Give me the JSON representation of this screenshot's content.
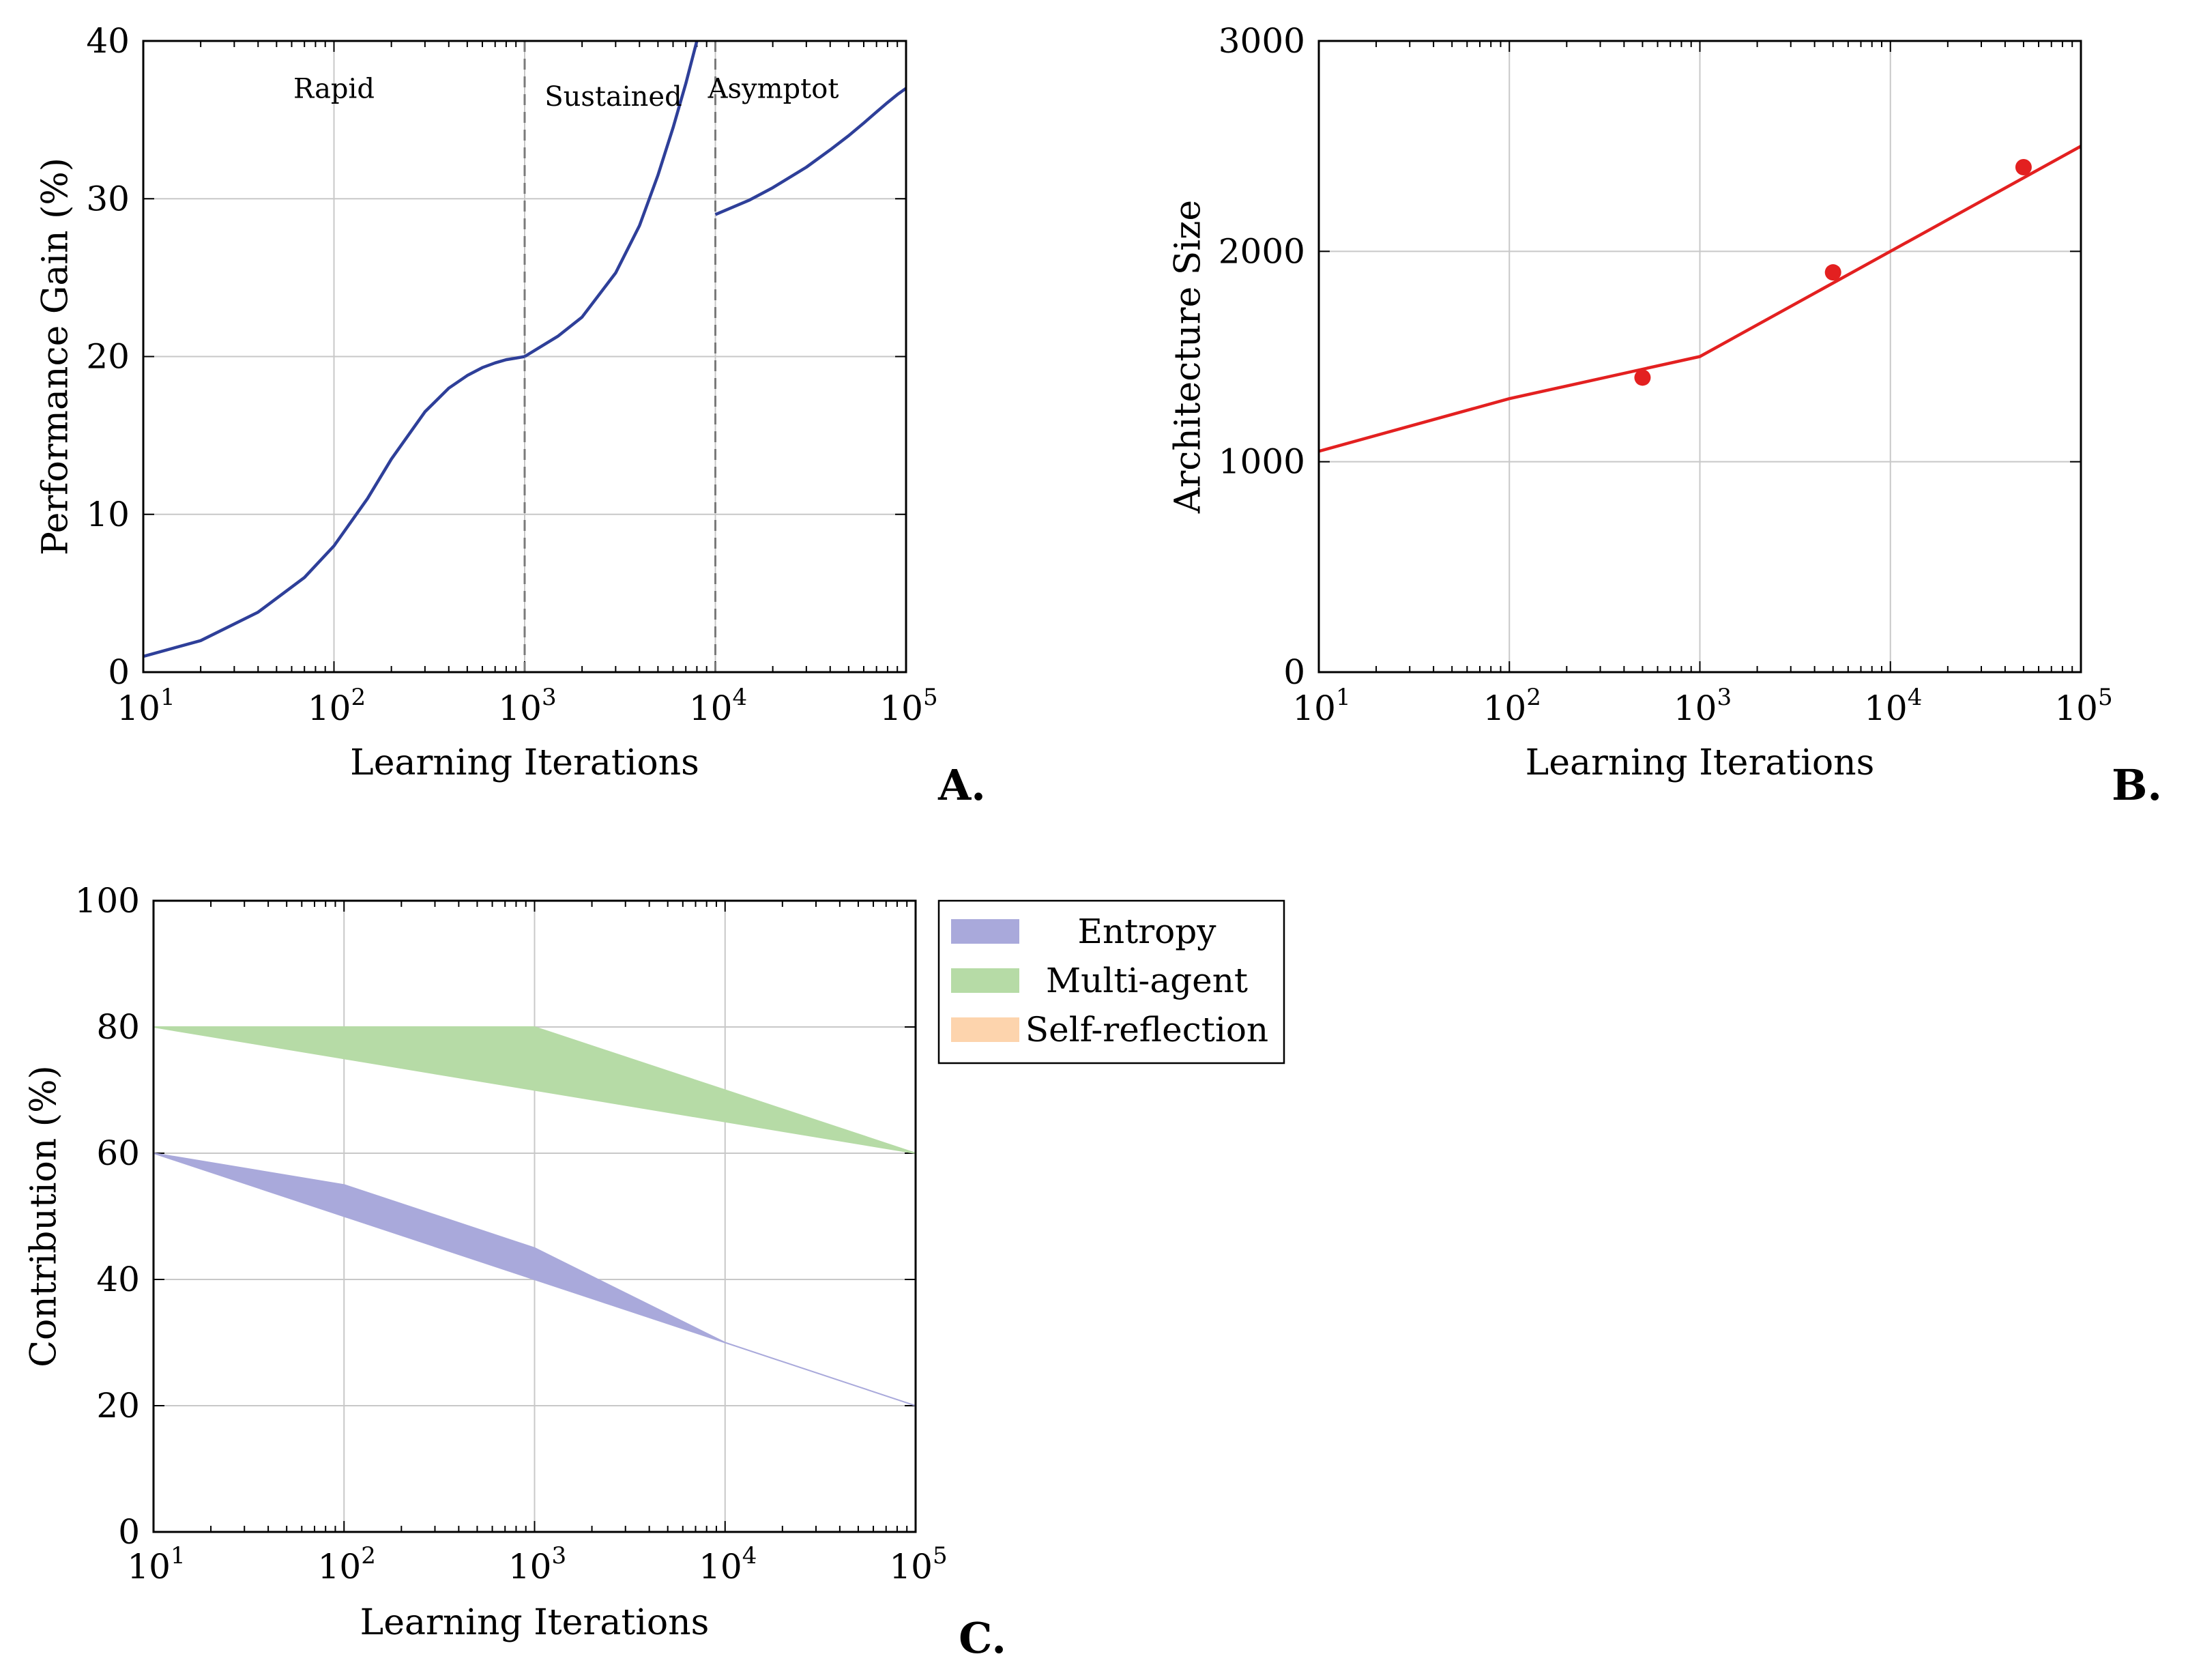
{
  "chart_data": [
    {
      "type": "line",
      "panel_label": "A.",
      "xlabel": "Learning Iterations",
      "ylabel": "Performance Gain (%)",
      "xscale": "log",
      "xlim": [
        10,
        100000
      ],
      "ylim": [
        0,
        40
      ],
      "x_ticks": [
        {
          "base": "10",
          "exp": "1"
        },
        {
          "base": "10",
          "exp": "2"
        },
        {
          "base": "10",
          "exp": "3"
        },
        {
          "base": "10",
          "exp": "4"
        },
        {
          "base": "10",
          "exp": "5"
        }
      ],
      "y_ticks": [
        "0",
        "10",
        "20",
        "30",
        "40"
      ],
      "grid": true,
      "phase_boundaries": [
        1000,
        10000
      ],
      "annotations": [
        {
          "text": "Rapid",
          "x": 100,
          "y": 37
        },
        {
          "text": "Sustained",
          "x": 1000,
          "y": 36.5
        },
        {
          "text": "Asymptot",
          "x": 10000,
          "y": 37
        }
      ],
      "series": [
        {
          "color": "#2e3f99",
          "segments": [
            {
              "x": [
                10,
                20,
                40,
                70,
                100,
                150,
                200,
                300,
                400,
                500,
                600,
                700,
                800,
                900,
                1000
              ],
              "y": [
                1,
                2,
                3.8,
                6,
                8,
                11,
                13.5,
                16.5,
                18,
                18.8,
                19.3,
                19.6,
                19.8,
                19.9,
                20
              ]
            },
            {
              "x": [
                1000,
                1500,
                2000,
                3000,
                4000,
                5000,
                6000,
                7000,
                8000
              ],
              "y": [
                20,
                21.3,
                22.5,
                25.3,
                28.3,
                31.5,
                34.5,
                37.3,
                40
              ]
            },
            {
              "x": [
                10000,
                15000,
                20000,
                30000,
                40000,
                50000,
                60000,
                70000,
                80000,
                90000,
                100000
              ],
              "y": [
                29,
                29.9,
                30.7,
                32,
                33.1,
                34,
                34.8,
                35.5,
                36.1,
                36.6,
                37
              ]
            }
          ]
        }
      ]
    },
    {
      "type": "line",
      "panel_label": "B.",
      "xlabel": "Learning Iterations",
      "ylabel": "Architecture Size",
      "xscale": "log",
      "xlim": [
        10,
        100000
      ],
      "ylim": [
        0,
        3000
      ],
      "x_ticks": [
        {
          "base": "10",
          "exp": "1"
        },
        {
          "base": "10",
          "exp": "2"
        },
        {
          "base": "10",
          "exp": "3"
        },
        {
          "base": "10",
          "exp": "4"
        },
        {
          "base": "10",
          "exp": "5"
        }
      ],
      "y_ticks": [
        "0",
        "1000",
        "2000",
        "3000"
      ],
      "grid": true,
      "series": [
        {
          "kind": "line",
          "color": "#e32020",
          "x": [
            10,
            100,
            1000,
            100000
          ],
          "y": [
            1050,
            1300,
            1500,
            2500
          ]
        },
        {
          "kind": "scatter",
          "color": "#e32020",
          "x": [
            500,
            5000,
            50000
          ],
          "y": [
            1400,
            1900,
            2400
          ]
        }
      ]
    },
    {
      "type": "area",
      "panel_label": "C.",
      "xlabel": "Learning Iterations",
      "ylabel": "Contribution (%)",
      "xscale": "log",
      "xlim": [
        10,
        100000
      ],
      "ylim": [
        0,
        100
      ],
      "x_ticks": [
        {
          "base": "10",
          "exp": "1"
        },
        {
          "base": "10",
          "exp": "2"
        },
        {
          "base": "10",
          "exp": "3"
        },
        {
          "base": "10",
          "exp": "4"
        },
        {
          "base": "10",
          "exp": "5"
        }
      ],
      "y_ticks": [
        "0",
        "20",
        "40",
        "60",
        "80",
        "100"
      ],
      "grid": true,
      "legend_position": "outside-right-top",
      "series": [
        {
          "name": "Entropy",
          "color": "#a9a9db",
          "x": [
            10,
            100,
            1000,
            10000,
            100000
          ],
          "lower": [
            60,
            50,
            40,
            30,
            20
          ],
          "upper": [
            60,
            55,
            45,
            30,
            20
          ]
        },
        {
          "name": "Multi-agent",
          "color": "#b6dba6",
          "x": [
            10,
            100,
            1000,
            10000,
            100000
          ],
          "lower": [
            80,
            75,
            70,
            65,
            60
          ],
          "upper": [
            80,
            80,
            80,
            70,
            60
          ]
        },
        {
          "name": "Self-reflection",
          "color": "#fdd4ad",
          "x": [],
          "lower": [],
          "upper": []
        }
      ]
    }
  ]
}
